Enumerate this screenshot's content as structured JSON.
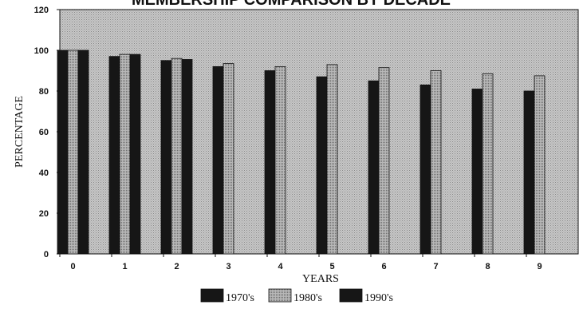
{
  "chart_data": {
    "type": "bar",
    "title": "MEMBERSHIP COMPARISON BY DECADE",
    "xlabel": "YEARS",
    "ylabel": "PERCENTAGE",
    "categories": [
      "0",
      "1",
      "2",
      "3",
      "4",
      "5",
      "6",
      "7",
      "8",
      "9"
    ],
    "ylim": [
      0,
      120
    ],
    "yticks": [
      0,
      20,
      40,
      60,
      80,
      100,
      120
    ],
    "grid": false,
    "legend_position": "bottom",
    "series": [
      {
        "name": "1970's",
        "values": [
          100,
          97,
          95,
          92,
          90,
          87,
          85,
          83,
          81,
          80
        ],
        "color": "#161616"
      },
      {
        "name": "1980's",
        "values": [
          100,
          98,
          96,
          93.5,
          92,
          93,
          91.5,
          90,
          88.5,
          87.5
        ],
        "color": "#a9a9a9"
      },
      {
        "name": "1990's",
        "values": [
          100,
          98,
          95.5,
          null,
          null,
          null,
          null,
          null,
          null,
          null
        ],
        "color": "#161616"
      }
    ]
  }
}
